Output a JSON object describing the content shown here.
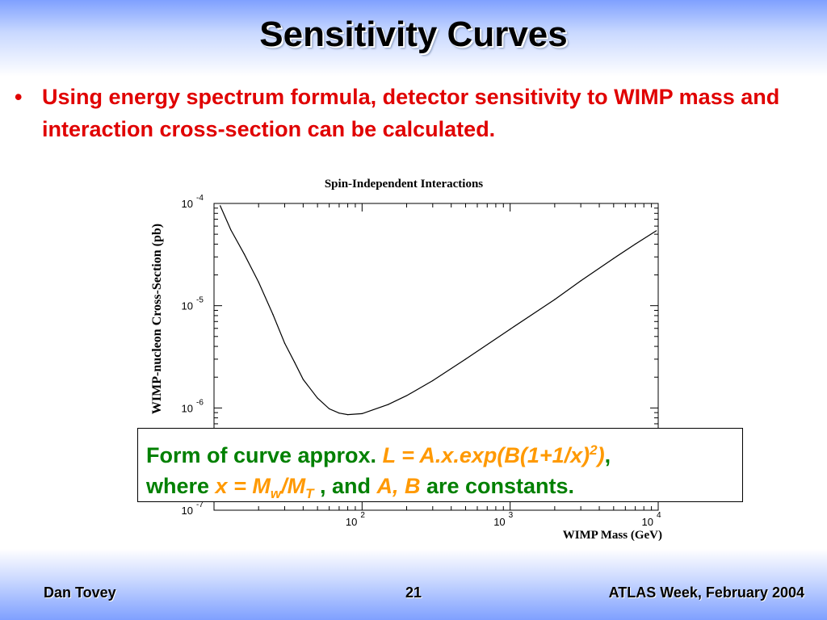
{
  "slide": {
    "title": "Sensitivity Curves",
    "bullet_symbol": "•",
    "bullet_text": "Using energy spectrum formula, detector sensitivity to WIMP mass and interaction cross-section can be calculated."
  },
  "chart_data": {
    "type": "line",
    "title": "Spin-Independent Interactions",
    "xlabel": "WIMP Mass (GeV)",
    "ylabel": "WIMP-nucleon Cross-Section (pb)",
    "xscale": "log",
    "yscale": "log",
    "xlim": [
      10,
      10000
    ],
    "ylim": [
      1e-07,
      0.0001
    ],
    "x_ticks": [
      {
        "value": 100,
        "base": "10",
        "exp": "2"
      },
      {
        "value": 1000,
        "base": "10",
        "exp": "3"
      },
      {
        "value": 10000,
        "base": "10",
        "exp": "4"
      }
    ],
    "y_ticks": [
      {
        "value": 0.0001,
        "base": "10",
        "exp": "-4"
      },
      {
        "value": 1e-05,
        "base": "10",
        "exp": "-5"
      },
      {
        "value": 1e-06,
        "base": "10",
        "exp": "-6"
      },
      {
        "value": 1e-07,
        "base": "10",
        "exp": "-7"
      }
    ],
    "series": [
      {
        "x": [
          11,
          13,
          16,
          20,
          25,
          30,
          35,
          40,
          50,
          60,
          70,
          80,
          100,
          150,
          200,
          300,
          500,
          1000,
          2000,
          3000,
          5000,
          7000,
          9700
        ],
        "y": [
          9.5e-05,
          5.5e-05,
          3.2e-05,
          1.7e-05,
          8.2e-06,
          4.3e-06,
          2.8e-06,
          1.9e-06,
          1.25e-06,
          9.8e-07,
          8.9e-07,
          8.6e-07,
          8.8e-07,
          1.08e-06,
          1.32e-06,
          1.85e-06,
          3e-06,
          5.9e-06,
          1.15e-05,
          1.75e-05,
          2.9e-05,
          4e-05,
          5.4e-05
        ]
      }
    ]
  },
  "formula_box": {
    "line1_prefix": "Form of curve approx. ",
    "formula_main": "L = A.x.exp(B(1+1/x)",
    "formula_sup": "2",
    "formula_close": ")",
    "line1_suffix": ",",
    "line2_where": "where ",
    "x_eq": "x = M",
    "x_sub1": "w",
    "x_slash": "/M",
    "x_sub2": "T",
    "and_text": " , and ",
    "ab": "A, B",
    "constants_text": " are constants."
  },
  "footer": {
    "author": "Dan Tovey",
    "page": "21",
    "event": "ATLAS Week, February 2004"
  }
}
